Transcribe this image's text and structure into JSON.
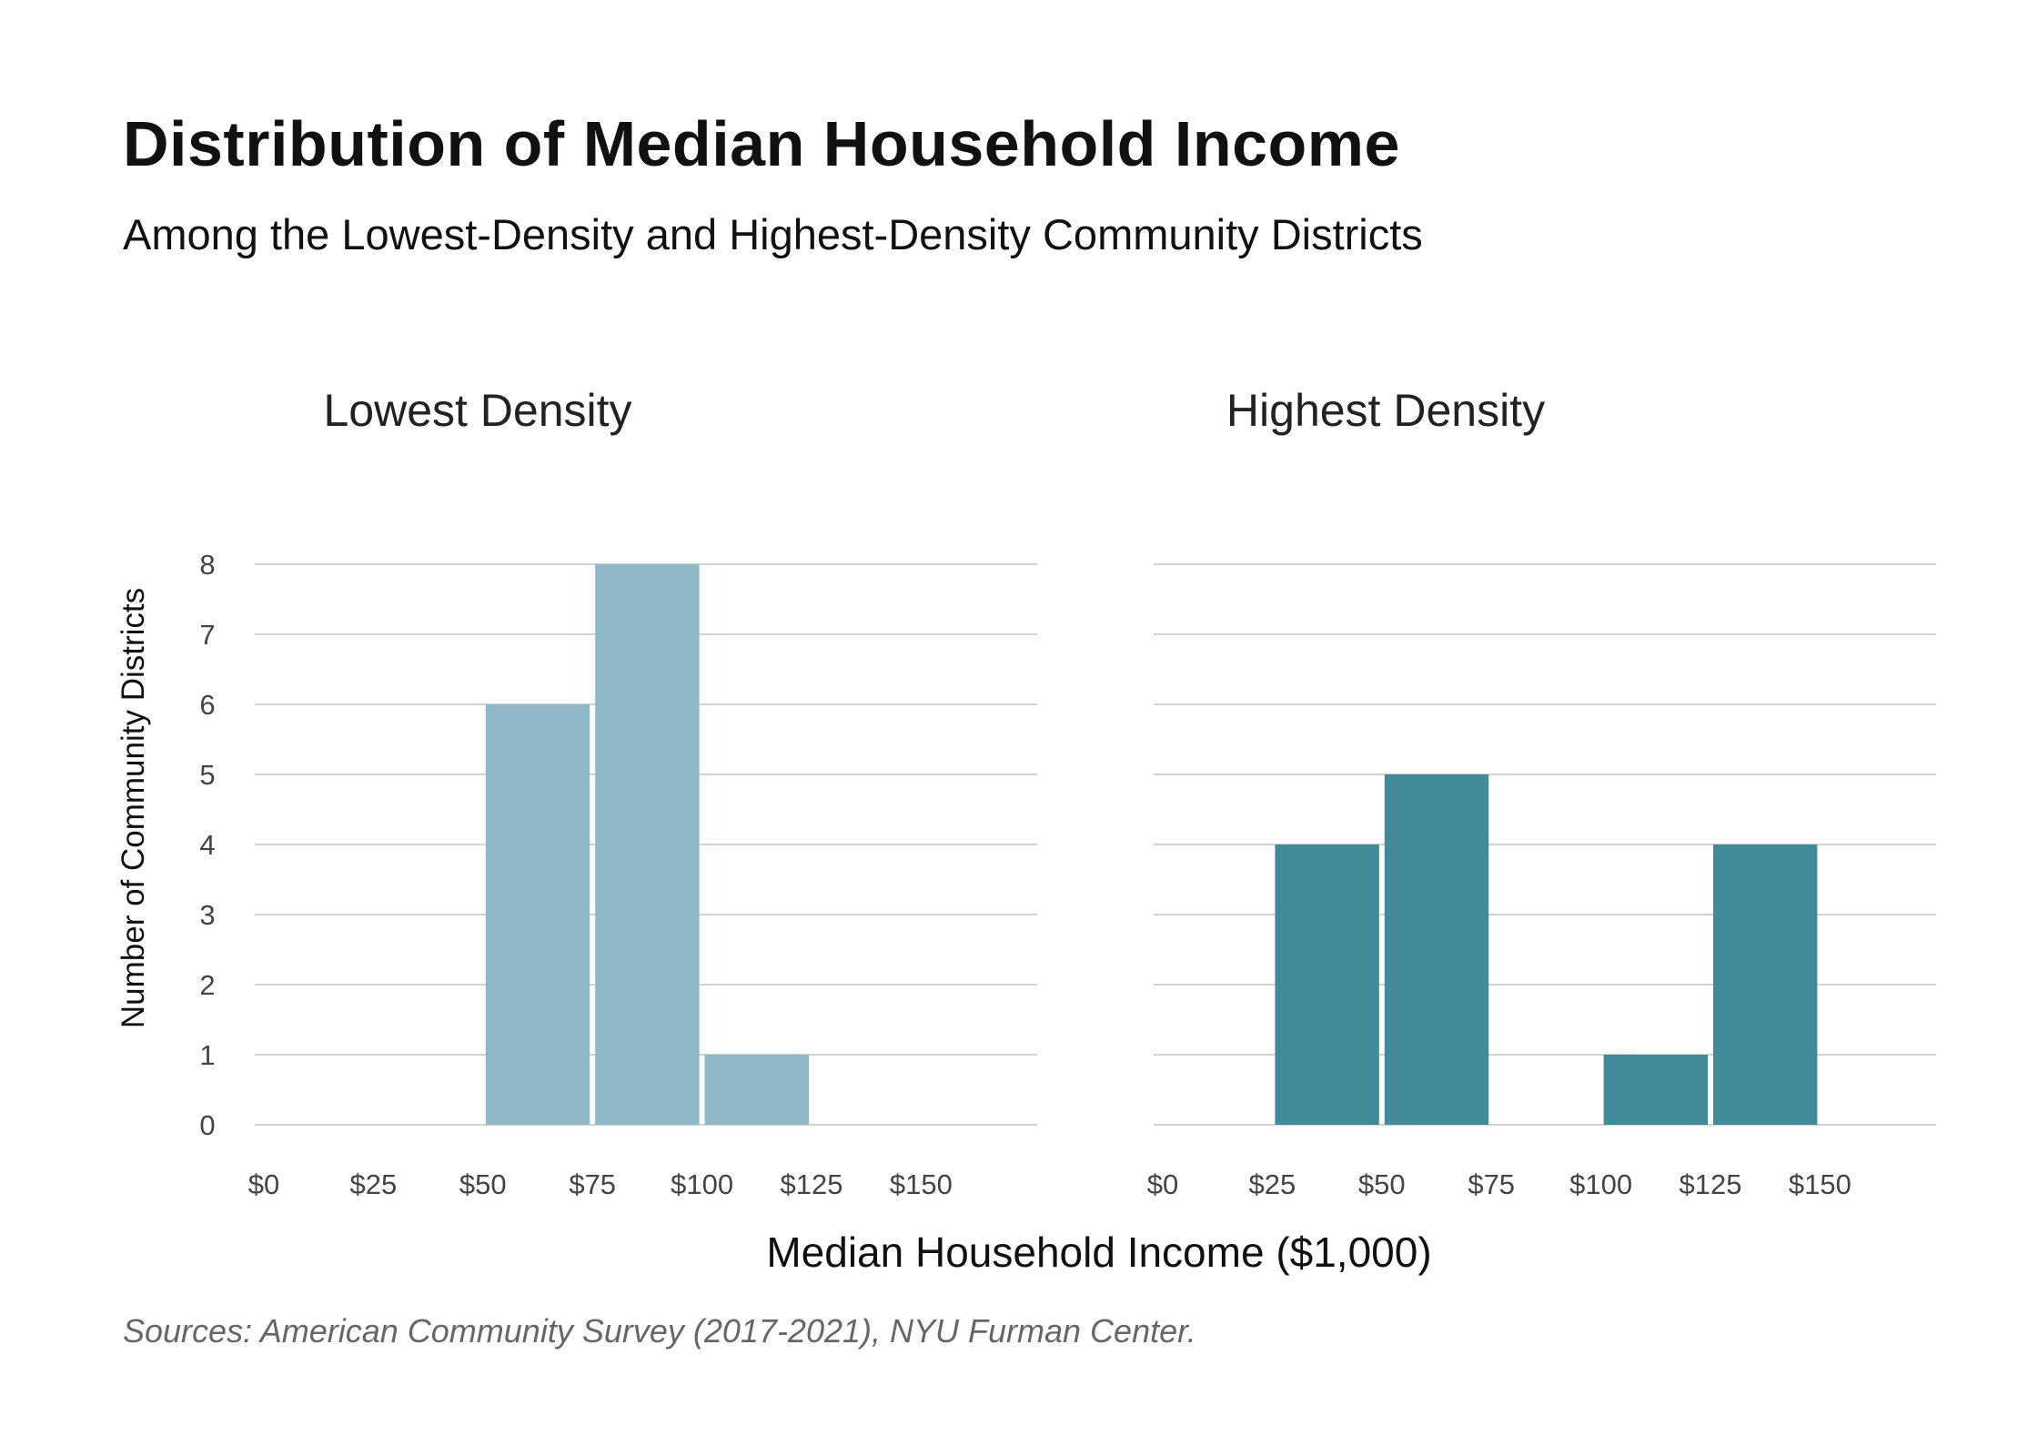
{
  "title": "Distribution of Median Household Income",
  "subtitle": "Among the Lowest-Density and Highest-Density Community Districts",
  "source": "Sources: American Community Survey (2017-2021), NYU Furman Center.",
  "colors": {
    "lowest": "#8fb8c7",
    "highest": "#418a99",
    "grid": "#d2d2d2"
  },
  "chart_data": {
    "type": "bar",
    "xlabel": "Median Household Income ($1,000)",
    "ylabel": "Number of Community Districts",
    "ylim": [
      0,
      8
    ],
    "y_ticks": [
      0,
      1,
      2,
      3,
      4,
      5,
      6,
      7,
      8
    ],
    "x_ticks": [
      {
        "value": 0,
        "label": "$0"
      },
      {
        "value": 25,
        "label": "$25"
      },
      {
        "value": 50,
        "label": "$50"
      },
      {
        "value": 75,
        "label": "$75"
      },
      {
        "value": 100,
        "label": "$100"
      },
      {
        "value": 125,
        "label": "$125"
      },
      {
        "value": 150,
        "label": "$150"
      }
    ],
    "xlim": [
      0,
      175
    ],
    "grid": true,
    "panels": [
      {
        "name": "Lowest Density",
        "color_key": "lowest",
        "bins": [
          {
            "start": 50,
            "end": 75,
            "count": 6
          },
          {
            "start": 75,
            "end": 100,
            "count": 8
          },
          {
            "start": 100,
            "end": 125,
            "count": 1
          }
        ]
      },
      {
        "name": "Highest Density",
        "color_key": "highest",
        "bins": [
          {
            "start": 25,
            "end": 50,
            "count": 4
          },
          {
            "start": 50,
            "end": 75,
            "count": 5
          },
          {
            "start": 100,
            "end": 125,
            "count": 1
          },
          {
            "start": 125,
            "end": 150,
            "count": 4
          }
        ]
      }
    ]
  }
}
